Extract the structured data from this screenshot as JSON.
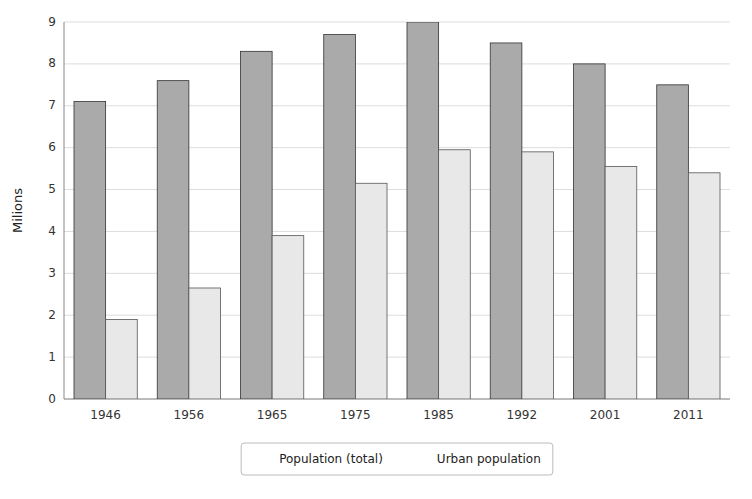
{
  "chart_data": {
    "type": "bar",
    "categories": [
      "1946",
      "1956",
      "1965",
      "1975",
      "1985",
      "1992",
      "2001",
      "2011"
    ],
    "y_label": "Milions",
    "series": [
      {
        "name": "Population (total)",
        "color": "#aaaaaa",
        "values": [
          7.1,
          7.6,
          8.3,
          8.7,
          9.0,
          8.5,
          8.0,
          7.5
        ]
      },
      {
        "name": "Urban population",
        "color": "#e8e8e8",
        "values": [
          1.9,
          2.65,
          3.9,
          5.15,
          5.95,
          5.9,
          5.55,
          5.4
        ]
      }
    ],
    "ylim": [
      0,
      9
    ],
    "yticks": [
      0,
      1,
      2,
      3,
      4,
      5,
      6,
      7,
      8,
      9
    ],
    "grid": true,
    "legend": "bottom"
  }
}
